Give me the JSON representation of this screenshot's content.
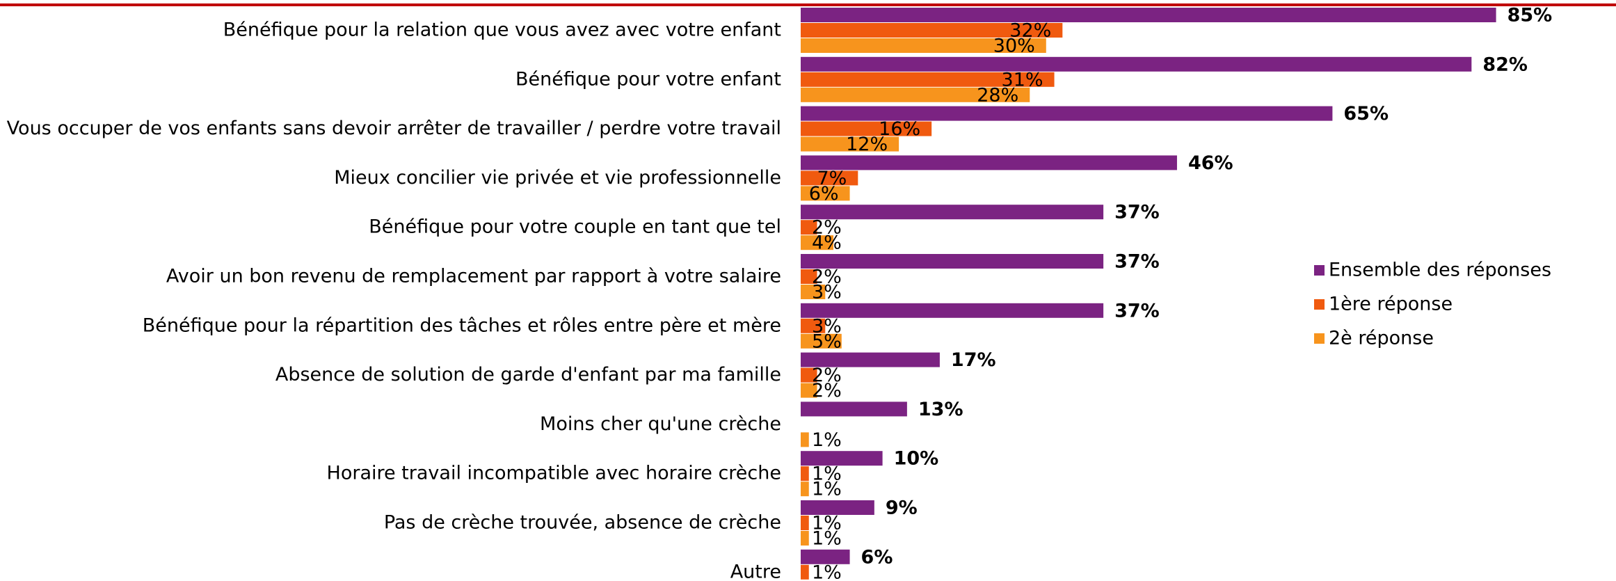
{
  "chart_data": {
    "type": "bar",
    "orientation": "horizontal",
    "categories": [
      "Bénéfique pour la relation que vous avez avec votre enfant",
      "Bénéfique pour votre enfant",
      "Vous occuper de vos enfants sans devoir arrêter de travailler / perdre votre travail",
      "Mieux concilier vie privée et vie professionnelle",
      "Bénéfique pour votre couple en tant que tel",
      "Avoir un bon revenu de remplacement par rapport à votre salaire",
      "Bénéfique pour la répartition des tâches et rôles entre père et mère",
      "Absence de solution de garde d'enfant par ma famille",
      "Moins cher qu'une crèche",
      "Horaire travail incompatible avec horaire crèche",
      "Pas de crèche trouvée, absence de crèche",
      "Autre"
    ],
    "series": [
      {
        "name": "Ensemble des réponses",
        "color": "#7b2382",
        "values": [
          85,
          82,
          65,
          46,
          37,
          37,
          37,
          17,
          13,
          10,
          9,
          6
        ],
        "value_labels": [
          "85%",
          "82%",
          "65%",
          "46%",
          "37%",
          "37%",
          "37%",
          "17%",
          "13%",
          "10%",
          "9%",
          "6%"
        ]
      },
      {
        "name": "1ère réponse",
        "color": "#f05a0f",
        "values": [
          32,
          31,
          16,
          7,
          2,
          2,
          3,
          2,
          null,
          1,
          1,
          1
        ],
        "value_labels": [
          "32%",
          "31%",
          "16%",
          "7%",
          "2%",
          "2%",
          "3%",
          "2%",
          null,
          "1%",
          "1%",
          "1%"
        ]
      },
      {
        "name": "2è réponse",
        "color": "#f7941d",
        "values": [
          30,
          28,
          12,
          6,
          4,
          3,
          5,
          2,
          1,
          1,
          1,
          null
        ],
        "value_labels": [
          "30%",
          "28%",
          "12%",
          "6%",
          "4%",
          "3%",
          "5%",
          "2%",
          "1%",
          "1%",
          "1%",
          null
        ]
      }
    ],
    "legend": "right"
  }
}
